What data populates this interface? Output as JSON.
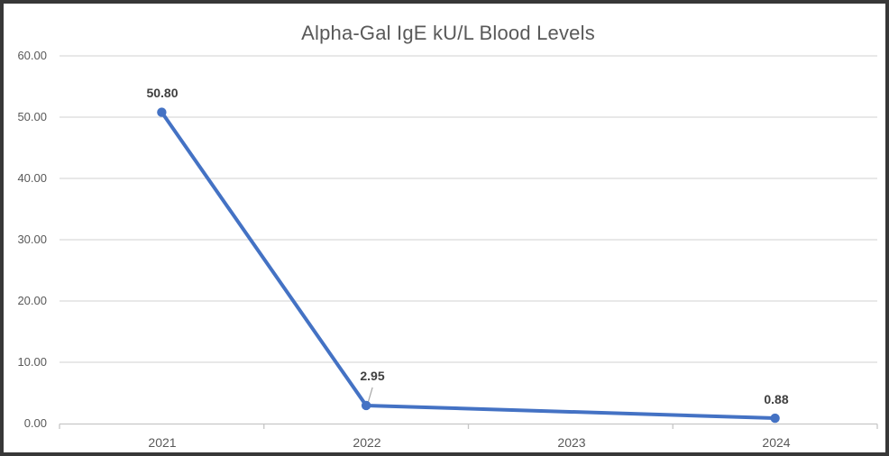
{
  "chart_data": {
    "type": "line",
    "title": "Alpha-Gal IgE kU/L Blood Levels",
    "categories": [
      "2021",
      "2022",
      "2023",
      "2024"
    ],
    "values": [
      50.8,
      2.95,
      null,
      0.88
    ],
    "data_labels": [
      "50.80",
      "2.95",
      null,
      "0.88"
    ],
    "y_ticks": [
      "0.00",
      "10.00",
      "20.00",
      "30.00",
      "40.00",
      "50.00",
      "60.00"
    ],
    "ylim": [
      0,
      60
    ],
    "grid": "horizontal",
    "legend": "none",
    "marker": "circle",
    "callout_leader_on_index": 1,
    "colors": {
      "line": "#4472C4",
      "marker": "#4472C4",
      "gridline": "#D9D9D9",
      "axis": "#C6C6C6",
      "title_text": "#595959",
      "tick_text": "#595959",
      "data_label_text": "#3F3F3F",
      "frame_border": "#383838",
      "leader_line": "#A6A6A6"
    }
  }
}
